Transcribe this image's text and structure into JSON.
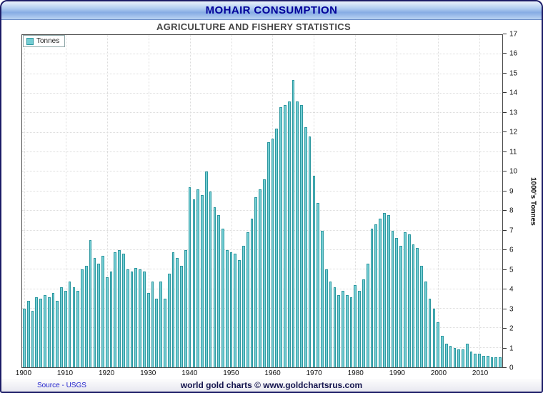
{
  "title": "MOHAIR CONSUMPTION",
  "subtitle": "AGRICULTURE AND FISHERY STATISTICS",
  "legend": {
    "label": "Tonnes"
  },
  "footer": {
    "source": "Source - USGS",
    "credit": "world gold charts © www.goldchartsrus.com"
  },
  "colors": {
    "bar_fill": "#74cdd3",
    "bar_border": "#2d98a0",
    "title_color": "#000099",
    "frame_border": "#1b1b66"
  },
  "chart_data": {
    "type": "bar",
    "title": "MOHAIR CONSUMPTION",
    "subtitle": "AGRICULTURE AND FISHERY STATISTICS",
    "ylabel": "1000's Tonnes",
    "xlabel": "",
    "ylim": [
      0,
      17
    ],
    "y_tick_step": 1,
    "grid": true,
    "legend_position": "top-left",
    "x_start": 1900,
    "x_end": 2015,
    "x_ticks": [
      1900,
      1910,
      1920,
      1930,
      1940,
      1950,
      1960,
      1970,
      1980,
      1990,
      2000,
      2010
    ],
    "series_name": "Tonnes",
    "values": [
      3.0,
      3.4,
      2.9,
      3.6,
      3.5,
      3.7,
      3.6,
      3.8,
      3.4,
      4.1,
      3.9,
      4.4,
      4.1,
      3.9,
      5.0,
      5.2,
      6.5,
      5.6,
      5.3,
      5.7,
      4.6,
      4.9,
      5.9,
      6.0,
      5.8,
      5.0,
      4.9,
      5.1,
      5.0,
      4.9,
      3.8,
      4.4,
      3.5,
      4.4,
      3.5,
      4.8,
      5.9,
      5.6,
      5.2,
      6.0,
      9.2,
      8.6,
      9.1,
      8.8,
      10.0,
      9.0,
      8.2,
      7.8,
      7.1,
      6.0,
      5.9,
      5.8,
      5.5,
      6.2,
      6.9,
      7.6,
      8.7,
      9.1,
      9.6,
      11.5,
      11.7,
      12.2,
      13.3,
      13.4,
      13.6,
      14.7,
      13.6,
      13.4,
      12.3,
      11.8,
      9.8,
      8.4,
      7.0,
      5.0,
      4.4,
      4.1,
      3.7,
      3.9,
      3.7,
      3.6,
      4.2,
      3.9,
      4.5,
      5.3,
      7.1,
      7.3,
      7.6,
      7.9,
      7.8,
      7.0,
      6.6,
      6.2,
      6.9,
      6.8,
      6.3,
      6.1,
      5.2,
      4.4,
      3.5,
      3.0,
      2.3,
      1.6,
      1.2,
      1.1,
      1.0,
      0.9,
      0.9,
      1.2,
      0.8,
      0.7,
      0.7,
      0.6,
      0.6,
      0.5,
      0.5,
      0.5
    ]
  }
}
